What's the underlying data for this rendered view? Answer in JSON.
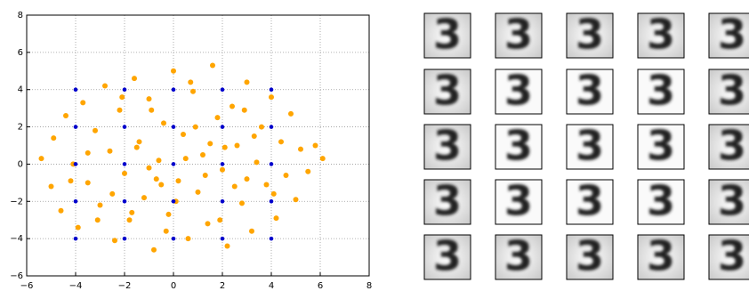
{
  "chart_data": {
    "type": "scatter",
    "xlim": [
      -6,
      8
    ],
    "ylim": [
      -6,
      8
    ],
    "xticks": [
      {
        "value": -6,
        "label": "−6"
      },
      {
        "value": -4,
        "label": "−4"
      },
      {
        "value": -2,
        "label": "−2"
      },
      0,
      2,
      4,
      6,
      8
    ],
    "yticks": [
      {
        "value": -6,
        "label": "−6"
      },
      {
        "value": -4,
        "label": "−4"
      },
      {
        "value": -2,
        "label": "−2"
      },
      0,
      2,
      4,
      6,
      8
    ],
    "grid": true,
    "series": [
      {
        "color": "#ffa500",
        "x": [
          -5.4,
          -5.0,
          -4.9,
          -4.6,
          -4.4,
          -4.1,
          -3.9,
          -3.7,
          -3.5,
          -3.2,
          -3.0,
          -2.8,
          -2.6,
          -2.4,
          -2.2,
          -2.0,
          -1.8,
          -1.6,
          -1.4,
          -1.2,
          -1.0,
          -0.8,
          -0.6,
          -0.4,
          -0.2,
          0.0,
          0.2,
          0.4,
          0.6,
          0.8,
          1.0,
          1.2,
          1.4,
          1.6,
          1.8,
          2.0,
          2.2,
          2.4,
          2.6,
          2.8,
          3.0,
          3.2,
          3.4,
          3.6,
          3.8,
          4.0,
          4.2,
          4.4,
          4.6,
          4.8,
          5.0,
          5.2,
          5.5,
          5.8,
          6.1,
          -1.0,
          0.5,
          -0.5,
          1.5,
          2.5,
          -2.5,
          -1.5,
          0.1,
          3.0,
          -3.5,
          1.9,
          -0.9,
          2.9,
          -3.1,
          0.7,
          -2.1,
          4.1,
          -4.2,
          3.3,
          -0.3,
          1.3,
          -1.7,
          0.9,
          2.1,
          -0.7
        ],
        "y": [
          0.3,
          -1.2,
          1.4,
          -2.5,
          2.6,
          0.0,
          -3.4,
          3.3,
          -1.0,
          1.8,
          -2.2,
          4.2,
          0.7,
          -4.1,
          2.9,
          -0.5,
          -3.0,
          4.6,
          1.2,
          -1.8,
          3.5,
          -4.6,
          0.2,
          2.2,
          -2.7,
          5.0,
          -0.9,
          1.6,
          -4.0,
          3.9,
          -1.5,
          0.5,
          -3.2,
          5.3,
          2.5,
          -0.3,
          -4.4,
          3.1,
          1.0,
          -2.1,
          4.4,
          -3.6,
          0.1,
          2.0,
          -1.1,
          3.6,
          -2.9,
          1.2,
          -0.6,
          2.7,
          -1.9,
          0.8,
          -0.4,
          1.0,
          0.3,
          -0.2,
          0.3,
          -1.1,
          1.1,
          -1.2,
          -1.6,
          0.9,
          -2.0,
          -0.8,
          0.6,
          -3.0,
          2.9,
          2.9,
          -3.0,
          4.4,
          3.6,
          -1.6,
          -0.9,
          1.5,
          -3.6,
          -0.6,
          -2.6,
          2.0,
          0.9,
          -0.8
        ]
      },
      {
        "color": "#0000cc",
        "x": [
          -4,
          -4,
          -4,
          -4,
          -4,
          -2,
          -2,
          -2,
          -2,
          -2,
          0,
          0,
          0,
          0,
          0,
          2,
          2,
          2,
          2,
          2,
          4,
          4,
          4,
          4,
          4
        ],
        "y": [
          -4,
          -2,
          0,
          2,
          4,
          -4,
          -2,
          0,
          2,
          4,
          -4,
          -2,
          0,
          2,
          4,
          -4,
          -2,
          0,
          2,
          4,
          -4,
          -2,
          0,
          2,
          4
        ]
      }
    ]
  }
}
